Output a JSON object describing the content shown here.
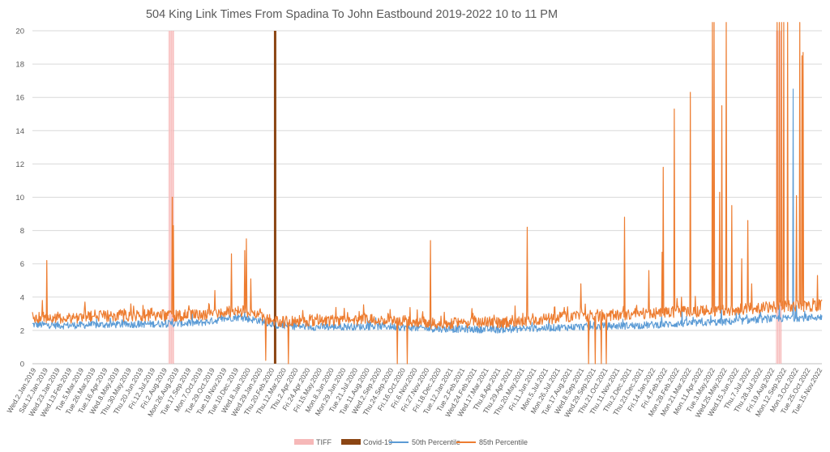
{
  "chart_data": {
    "type": "line",
    "title": "504 King Link Times From Spadina To John Eastbound 2019-2022 10 to 11 PM",
    "xlabel": "",
    "ylabel": "",
    "ylim": [
      0,
      20
    ],
    "yticks": [
      0,
      2,
      4,
      6,
      8,
      10,
      12,
      14,
      16,
      18,
      20
    ],
    "grid": "horizontal",
    "legend_position": "bottom",
    "x_start": "2019-01-02",
    "x_end": "2022-11-30",
    "x_tick_labels": [
      "Wed.2.Jan.2019",
      "Sat.12.Jan.2019",
      "Wed.23.Jan.2019",
      "Wed.13.Feb.2019",
      "Tue.5.Mar.2019",
      "Tue.26.Mar.2019",
      "Tue.16.Apr.2019",
      "Wed.8.May.2019",
      "Thu.30.May.2019",
      "Thu.20.Jun.2019",
      "Fri.12.Jul.2019",
      "Fri.2.Aug.2019",
      "Mon.26.Aug.2019",
      "Tue.17.Sep.2019",
      "Mon.7.Oct.2019",
      "Tue.29.Oct.2019",
      "Tue.19.Nov.2019",
      "Tue.10.Dec.2019",
      "Wed.8.Jan.2020",
      "Wed.29.Jan.2020",
      "Thu.20.Feb.2020",
      "Thu.12.Mar.2020",
      "Thu.2.Apr.2020",
      "Fri.24.Apr.2020",
      "Fri.15.May.2020",
      "Mon.8.Jun.2020",
      "Mon.29.Jun.2020",
      "Tue.21.Jul.2020",
      "Tue.11.Aug.2020",
      "Wed.2.Sep.2020",
      "Thu.24.Sep.2020",
      "Fri.16.Oct.2020",
      "Fri.6.Nov.2020",
      "Fri.27.Nov.2020",
      "Fri.18.Dec.2020",
      "Tue.12.Jan.2021",
      "Tue.2.Feb.2021",
      "Wed.24.Feb.2021",
      "Wed.17.Mar.2021",
      "Thu.8.Apr.2021",
      "Thu.29.Apr.2021",
      "Thu.20.May.2021",
      "Fri.11.Jun.2021",
      "Mon.5.Jul.2021",
      "Mon.26.Jul.2021",
      "Tue.17.Aug.2021",
      "Wed.8.Sep.2021",
      "Wed.29.Sep.2021",
      "Thu.21.Oct.2021",
      "Thu.11.Nov.2021",
      "Thu.2.Dec.2021",
      "Thu.23.Dec.2021",
      "Fri.14.Jan.2022",
      "Fri.4.Feb.2022",
      "Mon.28.Feb.2022",
      "Mon.21.Mar.2022",
      "Mon.11.Apr.2022",
      "Tue.3.May.2022",
      "Wed.25.May.2022",
      "Wed.15.Jun.2022",
      "Thu.7.Jul.2022",
      "Thu.28.Jul.2022",
      "Fri.19.Aug.2022",
      "Mon.12.Sep.2022",
      "Mon.3.Oct.2022",
      "Tue.25.Oct.2022",
      "Tue.15.Nov.2022"
    ],
    "events": [
      {
        "name": "TIFF",
        "ranges": [
          [
            "2019-09-05",
            "2019-09-15"
          ],
          [
            "2022-09-08",
            "2022-09-18"
          ]
        ],
        "color": "#f4a6a6"
      },
      {
        "name": "Covid-19",
        "date": "2020-03-16",
        "color": "#8b4513"
      }
    ],
    "series": [
      {
        "name": "50th Percentile",
        "color": "#5b9bd5",
        "baseline": [
          [
            "2019-01-02",
            2.35
          ],
          [
            "2019-03-01",
            2.3
          ],
          [
            "2019-06-01",
            2.35
          ],
          [
            "2019-09-01",
            2.4
          ],
          [
            "2019-11-01",
            2.45
          ],
          [
            "2020-01-05",
            2.8
          ],
          [
            "2020-02-15",
            2.6
          ],
          [
            "2020-03-20",
            2.3
          ],
          [
            "2020-06-01",
            2.2
          ],
          [
            "2020-10-01",
            2.25
          ],
          [
            "2021-01-01",
            2.1
          ],
          [
            "2021-05-01",
            2.05
          ],
          [
            "2021-09-01",
            2.2
          ],
          [
            "2022-01-01",
            2.3
          ],
          [
            "2022-06-01",
            2.5
          ],
          [
            "2022-09-01",
            2.7
          ],
          [
            "2022-11-30",
            2.8
          ]
        ],
        "spikes": [
          [
            "2019-09-12",
            2.7
          ],
          [
            "2020-01-21",
            3.1
          ],
          [
            "2020-12-22",
            3.7
          ],
          [
            "2022-03-22",
            3.2
          ],
          [
            "2022-06-01",
            3.5
          ],
          [
            "2022-09-14",
            3.5
          ],
          [
            "2022-10-09",
            16.5
          ],
          [
            "2022-10-15",
            3.5
          ]
        ]
      },
      {
        "name": "85th Percentile",
        "color": "#ed7d31",
        "baseline": [
          [
            "2019-01-02",
            2.8
          ],
          [
            "2019-03-01",
            2.75
          ],
          [
            "2019-06-01",
            2.9
          ],
          [
            "2019-09-01",
            2.9
          ],
          [
            "2019-11-01",
            2.9
          ],
          [
            "2020-01-05",
            3.2
          ],
          [
            "2020-02-15",
            3.0
          ],
          [
            "2020-03-20",
            2.5
          ],
          [
            "2020-06-01",
            2.6
          ],
          [
            "2020-10-01",
            2.7
          ],
          [
            "2021-01-01",
            2.4
          ],
          [
            "2021-05-01",
            2.5
          ],
          [
            "2021-09-01",
            2.8
          ],
          [
            "2022-01-01",
            3.0
          ],
          [
            "2022-06-01",
            3.2
          ],
          [
            "2022-09-01",
            3.4
          ],
          [
            "2022-11-30",
            3.5
          ]
        ],
        "spikes": [
          [
            "2019-01-20",
            3.8
          ],
          [
            "2019-01-28",
            6.2
          ],
          [
            "2019-09-12",
            10.0
          ],
          [
            "2019-09-14",
            8.3
          ],
          [
            "2019-11-28",
            4.4
          ],
          [
            "2019-12-28",
            6.6
          ],
          [
            "2020-01-21",
            6.8
          ],
          [
            "2020-01-24",
            7.5
          ],
          [
            "2020-02-01",
            5.1
          ],
          [
            "2020-02-28",
            0.2
          ],
          [
            "2020-04-09",
            0.0
          ],
          [
            "2020-10-23",
            0.0
          ],
          [
            "2020-11-10",
            0.0
          ],
          [
            "2020-12-22",
            7.4
          ],
          [
            "2021-06-15",
            8.2
          ],
          [
            "2021-09-20",
            4.8
          ],
          [
            "2021-10-04",
            0.0
          ],
          [
            "2021-10-16",
            0.0
          ],
          [
            "2021-10-27",
            0.0
          ],
          [
            "2021-11-05",
            0.0
          ],
          [
            "2021-12-08",
            8.8
          ],
          [
            "2022-01-21",
            5.6
          ],
          [
            "2022-02-14",
            6.7
          ],
          [
            "2022-02-16",
            11.8
          ],
          [
            "2022-03-08",
            15.3
          ],
          [
            "2022-04-06",
            16.3
          ],
          [
            "2022-05-16",
            20.5
          ],
          [
            "2022-05-19",
            20.5
          ],
          [
            "2022-05-29",
            10.3
          ],
          [
            "2022-06-02",
            15.5
          ],
          [
            "2022-06-10",
            20.5
          ],
          [
            "2022-06-20",
            9.5
          ],
          [
            "2022-07-08",
            6.3
          ],
          [
            "2022-07-19",
            8.6
          ],
          [
            "2022-07-26",
            4.8
          ],
          [
            "2022-09-10",
            20.5
          ],
          [
            "2022-09-14",
            20.5
          ],
          [
            "2022-09-18",
            20.5
          ],
          [
            "2022-09-22",
            20.5
          ],
          [
            "2022-09-29",
            20.5
          ],
          [
            "2022-10-15",
            10.1
          ],
          [
            "2022-10-21",
            20.5
          ],
          [
            "2022-10-25",
            18.5
          ],
          [
            "2022-10-27",
            18.7
          ],
          [
            "2022-11-22",
            5.3
          ]
        ]
      }
    ]
  }
}
